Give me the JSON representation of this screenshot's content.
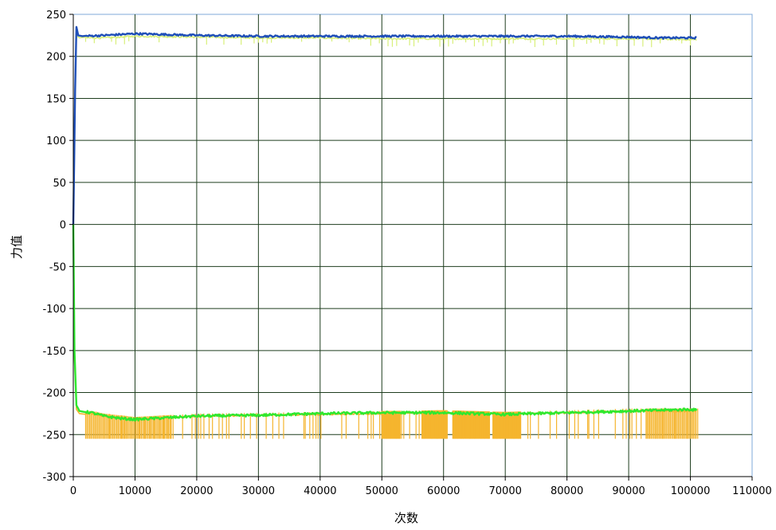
{
  "chart_data": {
    "type": "line",
    "title": "",
    "xlabel": "次数",
    "ylabel": "力值",
    "xlim": [
      0,
      110000
    ],
    "ylim": [
      -300,
      250
    ],
    "grid": true,
    "x_ticks": [
      "0",
      "10000",
      "20000",
      "30000",
      "40000",
      "50000",
      "60000",
      "70000",
      "80000",
      "90000",
      "100000",
      "110000"
    ],
    "y_ticks": [
      "250",
      "200",
      "150",
      "100",
      "50",
      "0",
      "-50",
      "-100",
      "-150",
      "-200",
      "-250",
      "-300"
    ],
    "colors": {
      "blue": "#1f4fb8",
      "yellow_green": "#d8f07a",
      "orange": "#f5b52e",
      "green": "#2ee82e",
      "grid": "#1e3d1e",
      "frame": "#7fa8d8"
    },
    "series": [
      {
        "color": "#d8f07a",
        "x": [
          0,
          200,
          500,
          1000,
          5000,
          10000,
          20000,
          30000,
          40000,
          50000,
          60000,
          70000,
          80000,
          90000,
          100000,
          101000
        ],
        "y": [
          -10,
          120,
          225,
          222,
          222,
          224,
          223,
          222,
          222,
          221,
          221,
          221,
          221,
          221,
          220,
          220
        ]
      },
      {
        "color": "#1f4fb8",
        "x": [
          0,
          150,
          300,
          500,
          800,
          1500,
          5000,
          10000,
          15000,
          20000,
          30000,
          40000,
          50000,
          60000,
          70000,
          80000,
          90000,
          95000,
          100000,
          101000
        ],
        "y": [
          0,
          80,
          160,
          235,
          225,
          224,
          225,
          227,
          226,
          225,
          224,
          224,
          224,
          224,
          224,
          224,
          223,
          222,
          222,
          222
        ]
      },
      {
        "color": "#f5b52e",
        "x": [
          0,
          200,
          500,
          1000,
          3000,
          5000,
          10000,
          15000,
          20000,
          30000,
          40000,
          50000,
          60000,
          70000,
          80000,
          90000,
          100000,
          101000
        ],
        "y": [
          -5,
          -160,
          -220,
          -225,
          -225,
          -228,
          -232,
          -230,
          -228,
          -227,
          -226,
          -225,
          -224,
          -226,
          -224,
          -222,
          -222,
          -222
        ],
        "spikes_low": -255,
        "spike_bands": [
          [
            2000,
            16000
          ],
          [
            50000,
            53000
          ],
          [
            56500,
            60500
          ],
          [
            61500,
            67500
          ],
          [
            68000,
            72500
          ],
          [
            93000,
            101000
          ]
        ],
        "sparse_spikes_range": [
          3000,
          101000
        ]
      },
      {
        "color": "#2ee82e",
        "x": [
          0,
          200,
          500,
          1000,
          3000,
          5000,
          8000,
          10000,
          15000,
          20000,
          30000,
          40000,
          50000,
          60000,
          70000,
          80000,
          90000,
          100000,
          101000
        ],
        "y": [
          0,
          -150,
          -215,
          -222,
          -224,
          -228,
          -231,
          -232,
          -230,
          -228,
          -227,
          -225,
          -224,
          -224,
          -226,
          -224,
          -222,
          -220,
          -221
        ]
      }
    ]
  }
}
